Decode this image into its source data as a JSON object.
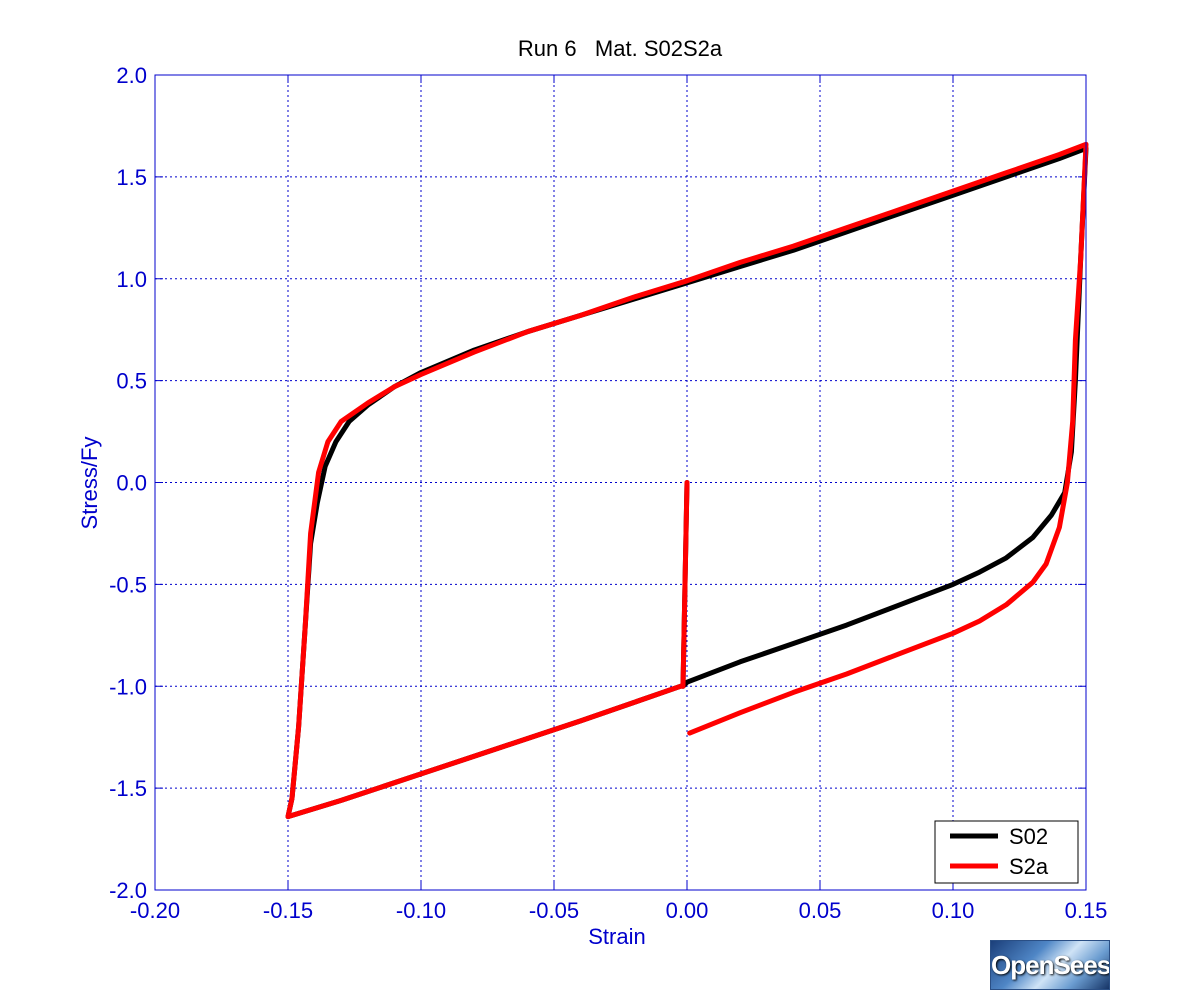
{
  "chart_data": {
    "type": "line",
    "title": "Run 6   Mat. S02S2a",
    "xlabel": "Strain",
    "ylabel": "Stress/Fy",
    "xlim": [
      -0.2,
      0.15
    ],
    "ylim": [
      -2.0,
      2.0
    ],
    "x_ticks": [
      -0.2,
      -0.15,
      -0.1,
      -0.05,
      0.0,
      0.05,
      0.1,
      0.15
    ],
    "x_tick_labels": [
      "-0.20",
      "-0.15",
      "-0.10",
      "-0.05",
      "0.00",
      "0.05",
      "0.10",
      "0.15"
    ],
    "y_ticks": [
      2.0,
      1.5,
      1.0,
      0.5,
      0.0,
      -0.5,
      -1.0,
      -1.5,
      -2.0
    ],
    "y_tick_labels": [
      "2.0",
      "1.5",
      "1.0",
      "0.5",
      "0.0",
      "-0.5",
      "-1.0",
      "-1.5",
      "-2.0"
    ],
    "grid": true,
    "legend_position": "bottom-right",
    "series": [
      {
        "name": "S02",
        "color": "#000000",
        "points": [
          [
            0.0,
            0.0
          ],
          [
            -0.0015,
            -1.0
          ],
          [
            0.0,
            -0.98
          ],
          [
            0.02,
            -0.88
          ],
          [
            0.04,
            -0.79
          ],
          [
            0.06,
            -0.7
          ],
          [
            0.08,
            -0.6
          ],
          [
            0.1,
            -0.5
          ],
          [
            0.11,
            -0.44
          ],
          [
            0.12,
            -0.37
          ],
          [
            0.13,
            -0.27
          ],
          [
            0.137,
            -0.16
          ],
          [
            0.142,
            -0.05
          ],
          [
            0.1445,
            0.15
          ],
          [
            0.146,
            0.5
          ],
          [
            0.148,
            1.1
          ],
          [
            0.15,
            1.64
          ],
          [
            0.14,
            1.59
          ],
          [
            0.12,
            1.5
          ],
          [
            0.1,
            1.41
          ],
          [
            0.08,
            1.32
          ],
          [
            0.06,
            1.23
          ],
          [
            0.04,
            1.14
          ],
          [
            0.02,
            1.06
          ],
          [
            0.0,
            0.98
          ],
          [
            -0.02,
            0.9
          ],
          [
            -0.04,
            0.82
          ],
          [
            -0.06,
            0.74
          ],
          [
            -0.08,
            0.65
          ],
          [
            -0.1,
            0.54
          ],
          [
            -0.11,
            0.47
          ],
          [
            -0.12,
            0.38
          ],
          [
            -0.127,
            0.3
          ],
          [
            -0.132,
            0.2
          ],
          [
            -0.136,
            0.08
          ],
          [
            -0.139,
            -0.1
          ],
          [
            -0.1415,
            -0.3
          ],
          [
            -0.1435,
            -0.7
          ],
          [
            -0.146,
            -1.2
          ],
          [
            -0.1485,
            -1.55
          ],
          [
            -0.15,
            -1.64
          ],
          [
            -0.13,
            -1.56
          ],
          [
            -0.1,
            -1.43
          ],
          [
            -0.07,
            -1.3
          ],
          [
            -0.04,
            -1.17
          ],
          [
            -0.02,
            -1.08
          ],
          [
            -0.0025,
            -1.0
          ]
        ]
      },
      {
        "name": "S2a",
        "color": "#ff0000",
        "points": [
          [
            0.0,
            0.0
          ],
          [
            -0.0015,
            -1.0
          ],
          [
            -0.0025,
            -1.0
          ],
          [
            -0.02,
            -1.08
          ],
          [
            -0.04,
            -1.17
          ],
          [
            -0.07,
            -1.3
          ],
          [
            -0.1,
            -1.43
          ],
          [
            -0.13,
            -1.56
          ],
          [
            -0.15,
            -1.64
          ],
          [
            -0.1485,
            -1.55
          ],
          [
            -0.146,
            -1.2
          ],
          [
            -0.1435,
            -0.7
          ],
          [
            -0.1415,
            -0.25
          ],
          [
            -0.1385,
            0.05
          ],
          [
            -0.135,
            0.2
          ],
          [
            -0.13,
            0.3
          ],
          [
            -0.12,
            0.39
          ],
          [
            -0.11,
            0.47
          ],
          [
            -0.1,
            0.53
          ],
          [
            -0.08,
            0.64
          ],
          [
            -0.06,
            0.74
          ],
          [
            -0.04,
            0.82
          ],
          [
            -0.02,
            0.91
          ],
          [
            0.0,
            0.99
          ],
          [
            0.02,
            1.08
          ],
          [
            0.04,
            1.16
          ],
          [
            0.06,
            1.25
          ],
          [
            0.08,
            1.34
          ],
          [
            0.1,
            1.43
          ],
          [
            0.12,
            1.52
          ],
          [
            0.14,
            1.61
          ],
          [
            0.15,
            1.66
          ],
          [
            0.148,
            1.1
          ],
          [
            0.146,
            0.7
          ],
          [
            0.145,
            0.3
          ],
          [
            0.143,
            0.0
          ],
          [
            0.14,
            -0.22
          ],
          [
            0.135,
            -0.4
          ],
          [
            0.13,
            -0.49
          ],
          [
            0.12,
            -0.6
          ],
          [
            0.11,
            -0.68
          ],
          [
            0.1,
            -0.74
          ],
          [
            0.08,
            -0.84
          ],
          [
            0.06,
            -0.94
          ],
          [
            0.04,
            -1.03
          ],
          [
            0.02,
            -1.13
          ],
          [
            0.001,
            -1.23
          ]
        ]
      }
    ]
  },
  "logo": {
    "text": "OpenSees"
  }
}
